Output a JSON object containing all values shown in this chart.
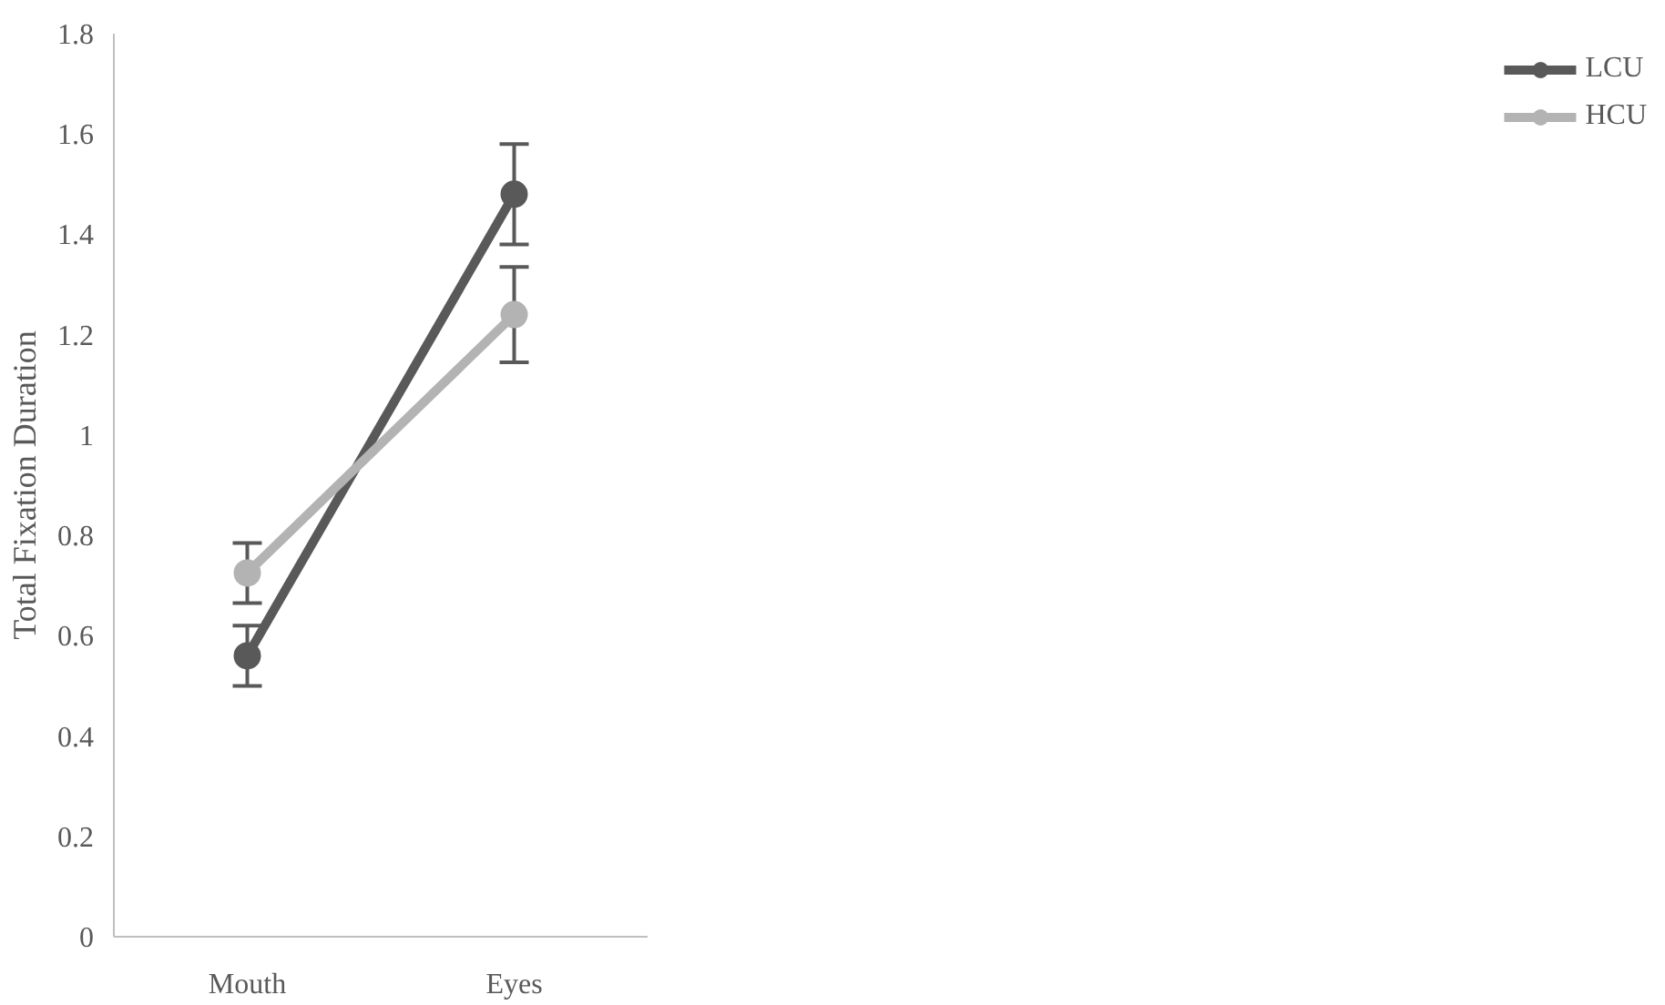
{
  "chart_data": {
    "type": "line",
    "ylabel": "Total Fixation Duration",
    "categories": [
      "Mouth",
      "Eyes"
    ],
    "series": [
      {
        "name": "LCU",
        "color": "#595959",
        "values": [
          0.56,
          1.48
        ],
        "errors": [
          0.06,
          0.1
        ]
      },
      {
        "name": "HCU",
        "color": "#b3b3b3",
        "values": [
          0.725,
          1.24
        ],
        "errors": [
          0.06,
          0.095
        ]
      }
    ],
    "ylim": [
      0,
      1.8
    ],
    "yticks": [
      0,
      0.2,
      0.4,
      0.6,
      0.8,
      1,
      1.2,
      1.4,
      1.6,
      1.8
    ],
    "grid": false,
    "legend": "right",
    "marker": "circle",
    "line_style": "solid"
  }
}
